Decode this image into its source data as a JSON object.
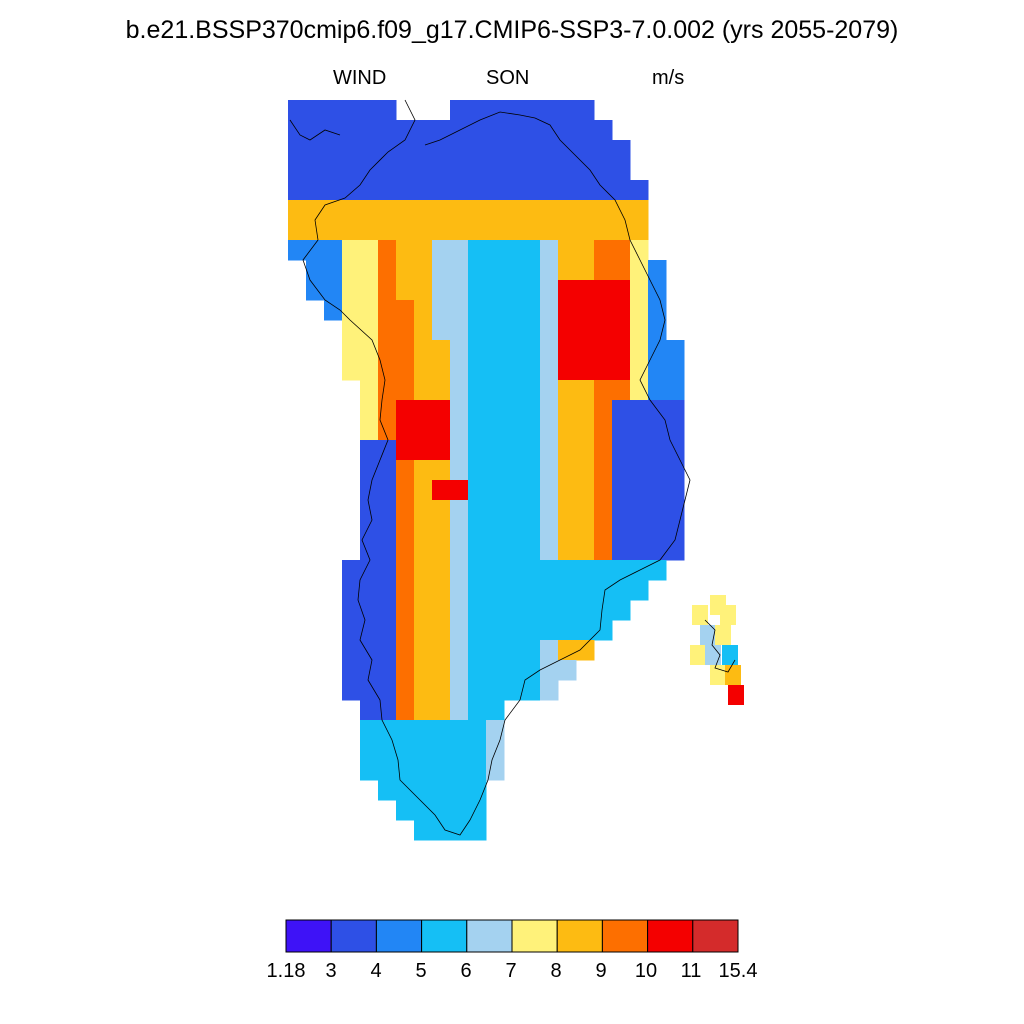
{
  "header": {
    "title": "b.e21.BSSP370cmip6.f09_g17.CMIP6-SSP3-7.0.002 (yrs 2055-2079)",
    "left": "WIND",
    "center": "SON",
    "right": "m/s"
  },
  "map": {
    "region": "Greenland",
    "palette": [
      "#3e12f7",
      "#2e50e6",
      "#2286f5",
      "#15bff5",
      "#a4d2f0",
      "#fff27a",
      "#fdbb12",
      "#fd6f00",
      "#f40000",
      "#d42b2b"
    ]
  },
  "colorbar": {
    "labels": [
      "1.18",
      "3",
      "4",
      "5",
      "6",
      "7",
      "8",
      "9",
      "10",
      "11",
      "15.4"
    ]
  }
}
